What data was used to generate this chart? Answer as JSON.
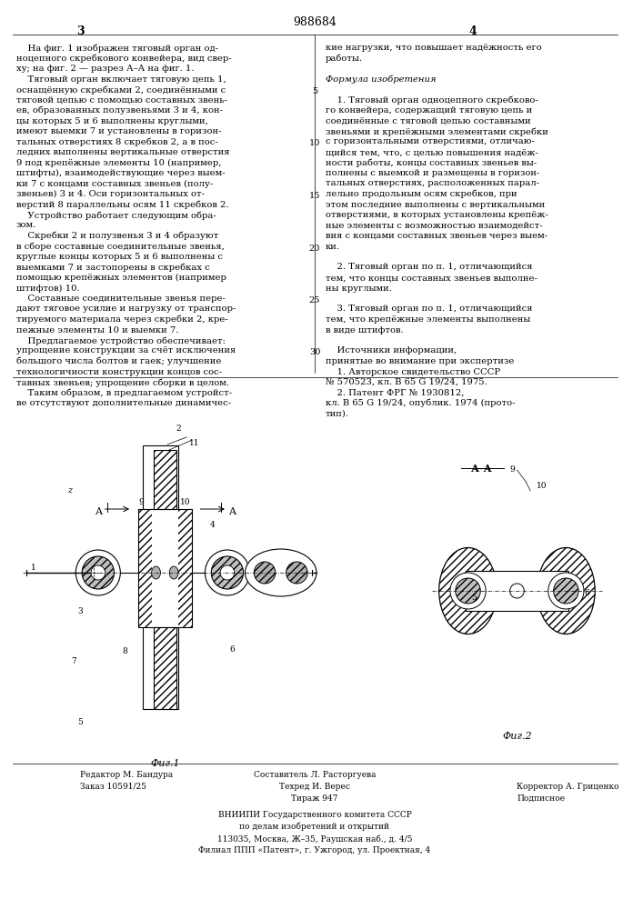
{
  "page_number_left": "3",
  "page_number_right": "4",
  "patent_number": "988684",
  "background_color": "#ffffff",
  "text_color": "#000000",
  "left_column_text": [
    "    На фиг. 1 изображен тяговый орган од-",
    "ноцепного скребкового конвейера, вид свер-",
    "ху; на фиг. 2 — разрез А–А на фиг. 1.",
    "    Тяговый орган включает тяговую цепь 1,",
    "оснащённую скребками 2, соединёнными с",
    "тяговой цепью с помощью составных звень-",
    "ев, образованных полузвеньями 3 и 4, кон-",
    "цы которых 5 и 6 выполнены круглыми,",
    "имеют выемки 7 и установлены в горизон-",
    "тальных отверстиях 8 скребков 2, а в пос-",
    "ледних выполнены вертикальные отверстия",
    "9 под крепёжные элементы 10 (например,",
    "штифты), взаимодействующие через выем-",
    "ки 7 с концами составных звеньев (полу-",
    "звеньев) 3 и 4. Оси горизонтальных от-",
    "верстий 8 параллельны осям 11 скребков 2.",
    "    Устройство работает следующим обра-",
    "зом.",
    "    Скребки 2 и полузвенья 3 и 4 образуют",
    "в сборе составные соединительные звенья,",
    "круглые концы которых 5 и 6 выполнены с",
    "выемками 7 и застопорены в скребках с",
    "помощью крепёжных элементов (например",
    "штифтов) 10.",
    "    Составные соединительные звенья пере-",
    "дают тяговое усилие и нагрузку от транспор-",
    "тируемого материала через скребки 2, кре-",
    "пежные элементы 10 и выемки 7.",
    "    Предлагаемое устройство обеспечивает:",
    "упрощение конструкции за счёт исключения",
    "большого числа болтов и гаек; улучшение",
    "технологичности конструкции концов сос-",
    "тавных звеньев; упрощение сборки в целом.",
    "    Таким образом, в предлагаемом устройст-",
    "ве отсутствуют дополнительные динамичес-"
  ],
  "right_column_text": [
    "кие нагрузки, что повышает надёжность его",
    "работы.",
    "",
    "Формула изобретения",
    "",
    "    1. Тяговый орган одноцепного скребково-",
    "го конвейера, содержащий тяговую цепь и",
    "соединённые с тяговой цепью составными",
    "звеньями и крепёжными элементами скребки",
    "с горизонтальными отверстиями, отличаю-",
    "щийся тем, что, с целью повышения надёж-",
    "ности работы, концы составных звеньев вы-",
    "полнены с выемкой и размещены в горизон-",
    "тальных отверстиях, расположенных парал-",
    "лельно продольным осям скребков, при",
    "этом последние выполнены с вертикальными",
    "отверстиями, в которых установлены крепёж-",
    "ные элементы с возможностью взаимодейст-",
    "вия с концами составных звеньев через выем-",
    "ки.",
    "",
    "    2. Тяговый орган по п. 1, отличающийся",
    "тем, что концы составных звеньев выполне-",
    "ны круглыми.",
    "",
    "    3. Тяговый орган по п. 1, отличающийся",
    "тем, что крепёжные элементы выполнены",
    "в виде штифтов.",
    "",
    "    Источники информации,",
    "принятые во внимание при экспертизе",
    "    1. Авторское свидетельство СССР",
    "№ 570523, кл. В 65 G 19/24, 1975.",
    "    2. Патент ФРГ № 1930812,",
    "кл. В 65 G 19/24, опублик. 1974 (прото-",
    "тип)."
  ],
  "bottom_text": [
    [
      "Редактор М. Бандура",
      "Составитель Л. Расторгуева",
      ""
    ],
    [
      "Заказ 10591/25",
      "Техред И. Верес",
      "Корректор А. Гриценко"
    ],
    [
      "",
      "Тираж 947",
      "Подписное"
    ]
  ],
  "vniiipi_text": [
    "ВНИИПИ Государственного комитета СССР",
    "по делам изобретений и открытий",
    "113035, Москва, Ж–35, Раушская наб., д. 4/5",
    "Филиал ППП «Патент», г. Ужгород, ул. Проектная, 4"
  ],
  "fig1_label": "Фиг.1",
  "fig2_label": "Фиг.2",
  "section_label": "А–А",
  "line_numbers": [
    "5",
    "10",
    "15",
    "20",
    "25",
    "30"
  ]
}
